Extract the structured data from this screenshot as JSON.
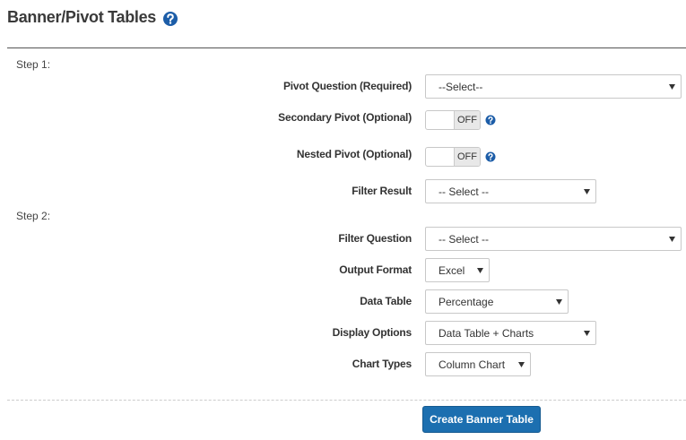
{
  "header": {
    "title": "Banner/Pivot Tables"
  },
  "steps": [
    {
      "label": "Step 1:",
      "fields": [
        {
          "label": "Pivot Question (Required)",
          "value": "--Select--"
        },
        {
          "label": "Secondary Pivot (Optional)",
          "value": "OFF"
        },
        {
          "label": "Nested Pivot (Optional)",
          "value": "OFF"
        },
        {
          "label": "Filter Result",
          "value": "-- Select --"
        }
      ]
    },
    {
      "label": "Step 2:",
      "fields": [
        {
          "label": "Filter Question",
          "value": "-- Select --"
        },
        {
          "label": "Output Format",
          "value": "Excel"
        },
        {
          "label": "Data Table",
          "value": "Percentage"
        },
        {
          "label": "Display Options",
          "value": "Data Table + Charts"
        },
        {
          "label": "Chart Types",
          "value": "Column Chart"
        }
      ]
    }
  ],
  "button": {
    "label": "Create Banner Table"
  }
}
